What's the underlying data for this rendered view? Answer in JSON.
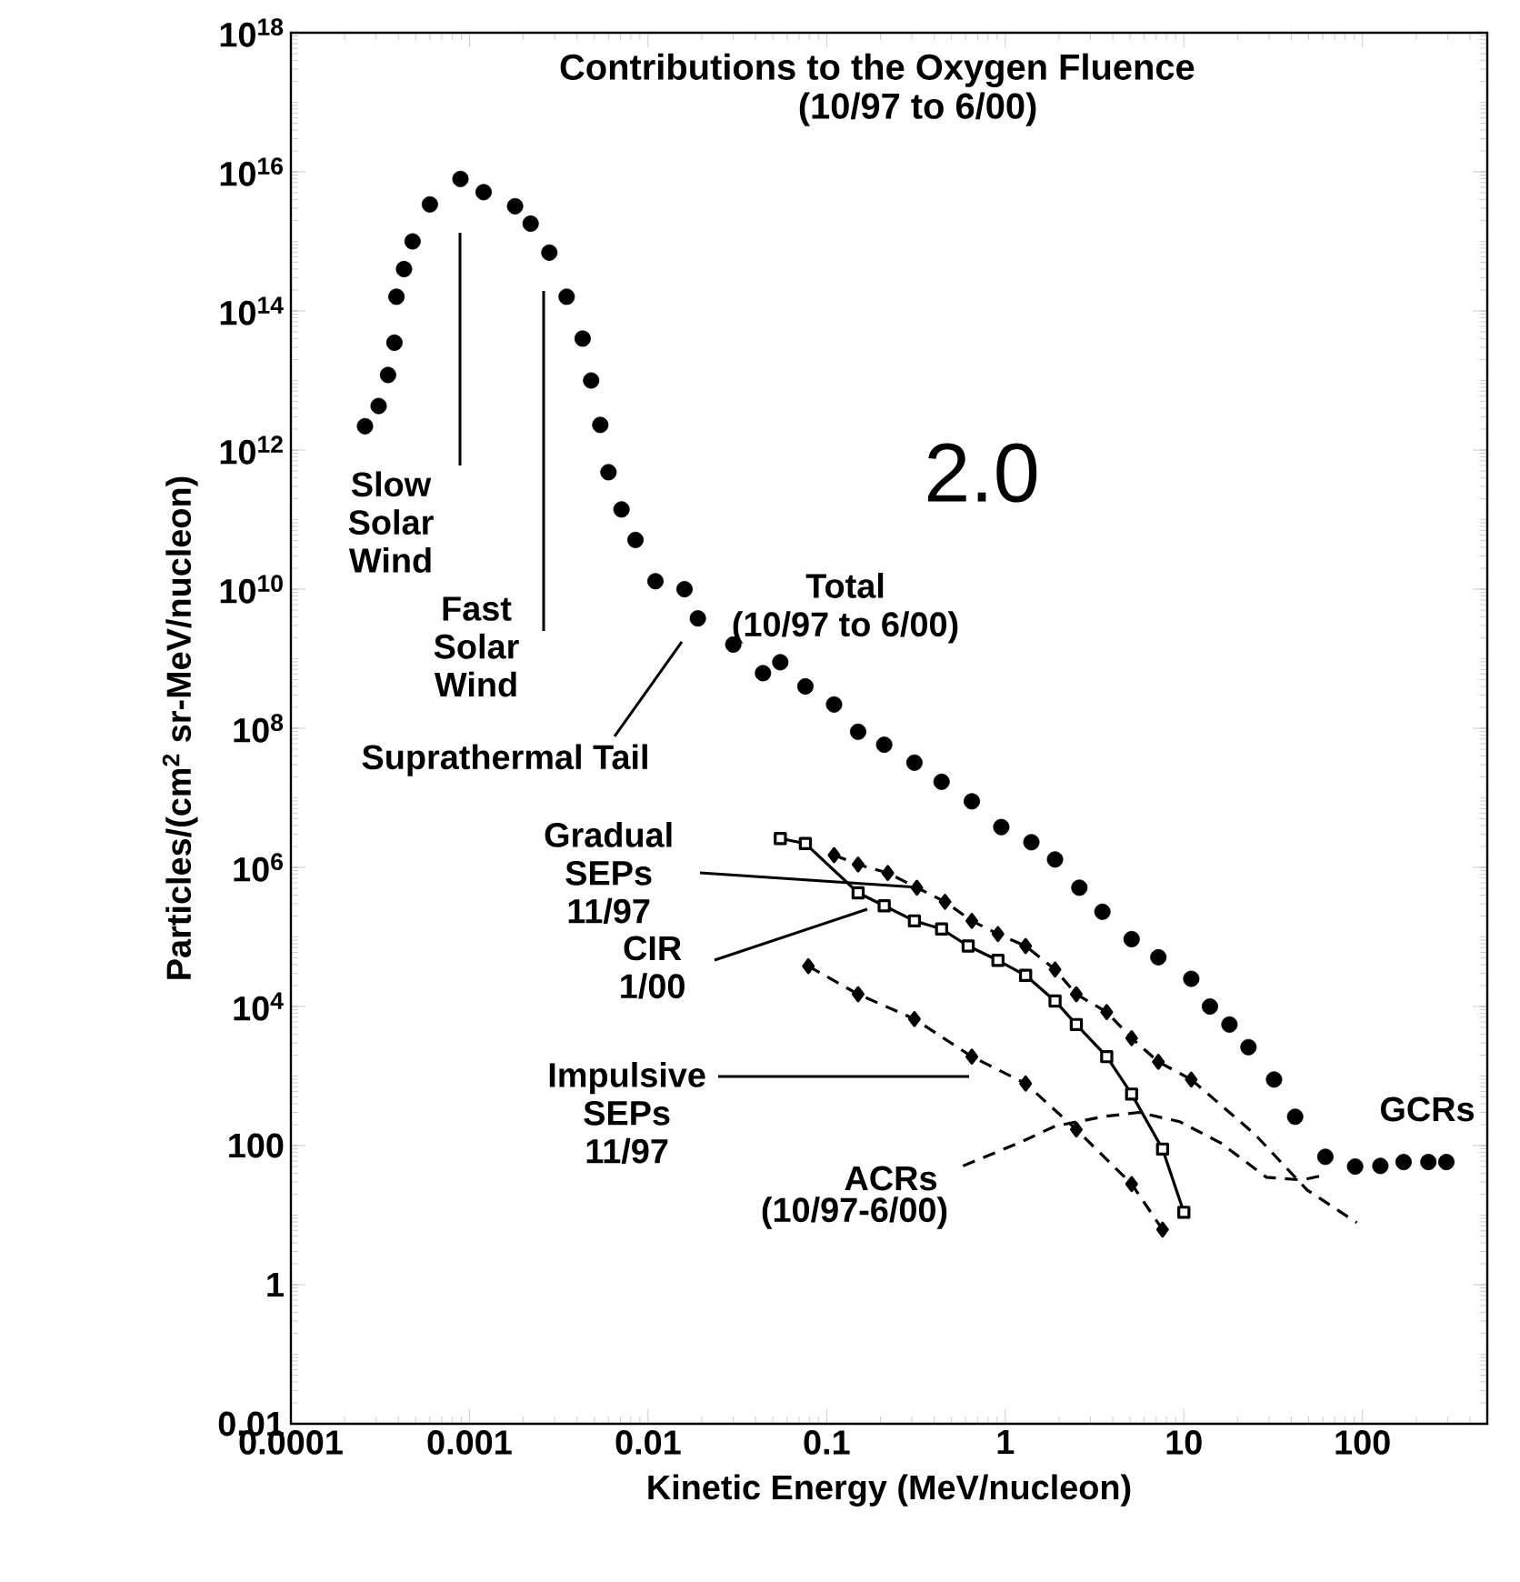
{
  "chart_data": {
    "type": "scatter",
    "title": "Contributions to the Oxygen Fluence",
    "subtitle": "(10/97 to 6/00)",
    "xlabel": "Kinetic Energy (MeV/nucleon)",
    "ylabel": "Particles/(cm$^{2}$ sr-MeV/nucleon)",
    "log": "xy",
    "xlim": [
      0.0001,
      500
    ],
    "ylim": [
      0.01,
      1e+18
    ],
    "xticks": [
      0.0001,
      0.001,
      0.01,
      0.1,
      1,
      10,
      100
    ],
    "yticks": [
      0.01,
      1,
      100,
      {
        "value": 10000.0,
        "label": "10$^{4}$"
      },
      {
        "value": 1000000.0,
        "label": "10$^{6}$"
      },
      {
        "value": 100000000.0,
        "label": "10$^{8}$"
      },
      {
        "value": 10000000000.0,
        "label": "10$^{10}$"
      },
      {
        "value": 1000000000000.0,
        "label": "10$^{12}$"
      },
      {
        "value": 100000000000000.0,
        "label": "10$^{14}$"
      },
      {
        "value": 1e+16,
        "label": "10$^{16}$"
      },
      {
        "value": 1e+18,
        "label": "10$^{18}$"
      }
    ],
    "series": [
      {
        "marker": "circle",
        "color": "#000000",
        "x": [
          0.00026,
          0.00031,
          0.00035,
          0.00038,
          0.00039,
          0.00043,
          0.00048,
          0.0006,
          0.00089,
          0.0012,
          0.0018,
          0.0022,
          0.0028,
          0.0035,
          0.0043,
          0.0048,
          0.0054,
          0.006,
          0.0071,
          0.0085,
          0.011,
          0.016,
          0.019,
          0.03,
          0.044,
          0.055,
          0.076,
          0.11,
          0.15,
          0.21,
          0.31,
          0.44,
          0.65,
          0.95,
          1.4,
          1.9,
          2.6,
          3.5,
          5.1,
          7.2,
          11,
          14,
          18,
          23,
          32,
          42,
          62
        ],
        "values": [
          2200000000000.0,
          4300000000000.0,
          12000000000000.0,
          35000000000000.0,
          160000000000000.0,
          400000000000000.0,
          1000000000000000.0,
          3400000000000000.0,
          7900000000000000.0,
          5100000000000000.0,
          3200000000000000.0,
          1800000000000000.0,
          690000000000000.0,
          160000000000000.0,
          40000000000000.0,
          10000000000000.0,
          2300000000000.0,
          480000000000.0,
          140000000000.0,
          51000000000.0,
          13000000000.0,
          10000000000.0,
          3800000000.0,
          1600000000.0,
          620000000.0,
          890000000.0,
          400000000.0,
          220000000.0,
          89000000.0,
          58000000.0,
          32000000.0,
          17000000.0,
          8900000.0,
          3800000.0,
          2300000.0,
          1300000.0,
          510000.0,
          230000.0,
          93000.0,
          51000.0,
          25000.0,
          10000.0,
          5500,
          2600,
          890,
          260,
          69
        ]
      },
      {
        "marker": "circle",
        "color": "#000000",
        "x": [
          91,
          126,
          170,
          234,
          295
        ],
        "values": [
          50,
          51,
          58,
          58,
          58
        ]
      },
      {
        "type": "line",
        "marker": "diamond",
        "line_style": "dashed",
        "color": "#000000",
        "x": [
          0.11,
          0.15,
          0.22,
          0.32,
          0.46,
          0.65,
          0.91,
          1.3,
          1.9,
          2.5,
          3.7,
          5.1,
          7.2,
          11
        ],
        "values": [
          1500000.0,
          1100000.0,
          830000.0,
          510000.0,
          320000.0,
          170000.0,
          110000.0,
          74000.0,
          34000.0,
          15000.0,
          8300,
          3500,
          1600,
          890
        ]
      },
      {
        "type": "line",
        "line_style": "dashed",
        "color": "#000000",
        "x": [
          11,
          25,
          49,
          93
        ],
        "values": [
          890,
          145,
          23,
          7.8
        ]
      },
      {
        "type": "line",
        "marker": "square",
        "line_style": "solid",
        "color": "#000000",
        "x": [
          0.055,
          0.076,
          0.15,
          0.21,
          0.31,
          0.44,
          0.62,
          0.91,
          1.3,
          1.9,
          2.5,
          3.7,
          5.1,
          7.6,
          10
        ],
        "values": [
          2600000.0,
          2200000.0,
          430000.0,
          280000.0,
          170000.0,
          130000.0,
          74000.0,
          46000.0,
          28000.0,
          12000.0,
          5500,
          1900,
          550,
          89,
          11
        ]
      },
      {
        "type": "line",
        "marker": "diamond",
        "line_style": "dashed",
        "color": "#000000",
        "x": [
          0.079,
          0.15,
          0.31,
          0.65,
          1.3,
          2.5,
          5.1,
          7.6
        ],
        "values": [
          38000.0,
          15000.0,
          6600,
          1900,
          780,
          170,
          28,
          6.2
        ]
      },
      {
        "type": "line",
        "line_style": "dashed",
        "color": "#000000",
        "x": [
          0.58,
          1.2,
          1.9,
          3.5,
          5.6,
          9.5,
          16,
          29,
          46,
          62
        ],
        "values": [
          51,
          110,
          190,
          260,
          300,
          220,
          110,
          35,
          32,
          38
        ]
      }
    ],
    "annotations": [
      "Slow Solar Wind",
      "Fast Solar Wind",
      "Suprathermal Tail",
      {
        "text": "Gradual SEPs 11/97",
        "x": 0.34,
        "y": 510000.0
      },
      "CIR 1/00",
      "Impulsive SEPs 11/97",
      "Total",
      "(10/97 to 6/00)",
      "ACRs",
      "(10/97-6/00)",
      "GCRs",
      "2.0"
    ]
  }
}
